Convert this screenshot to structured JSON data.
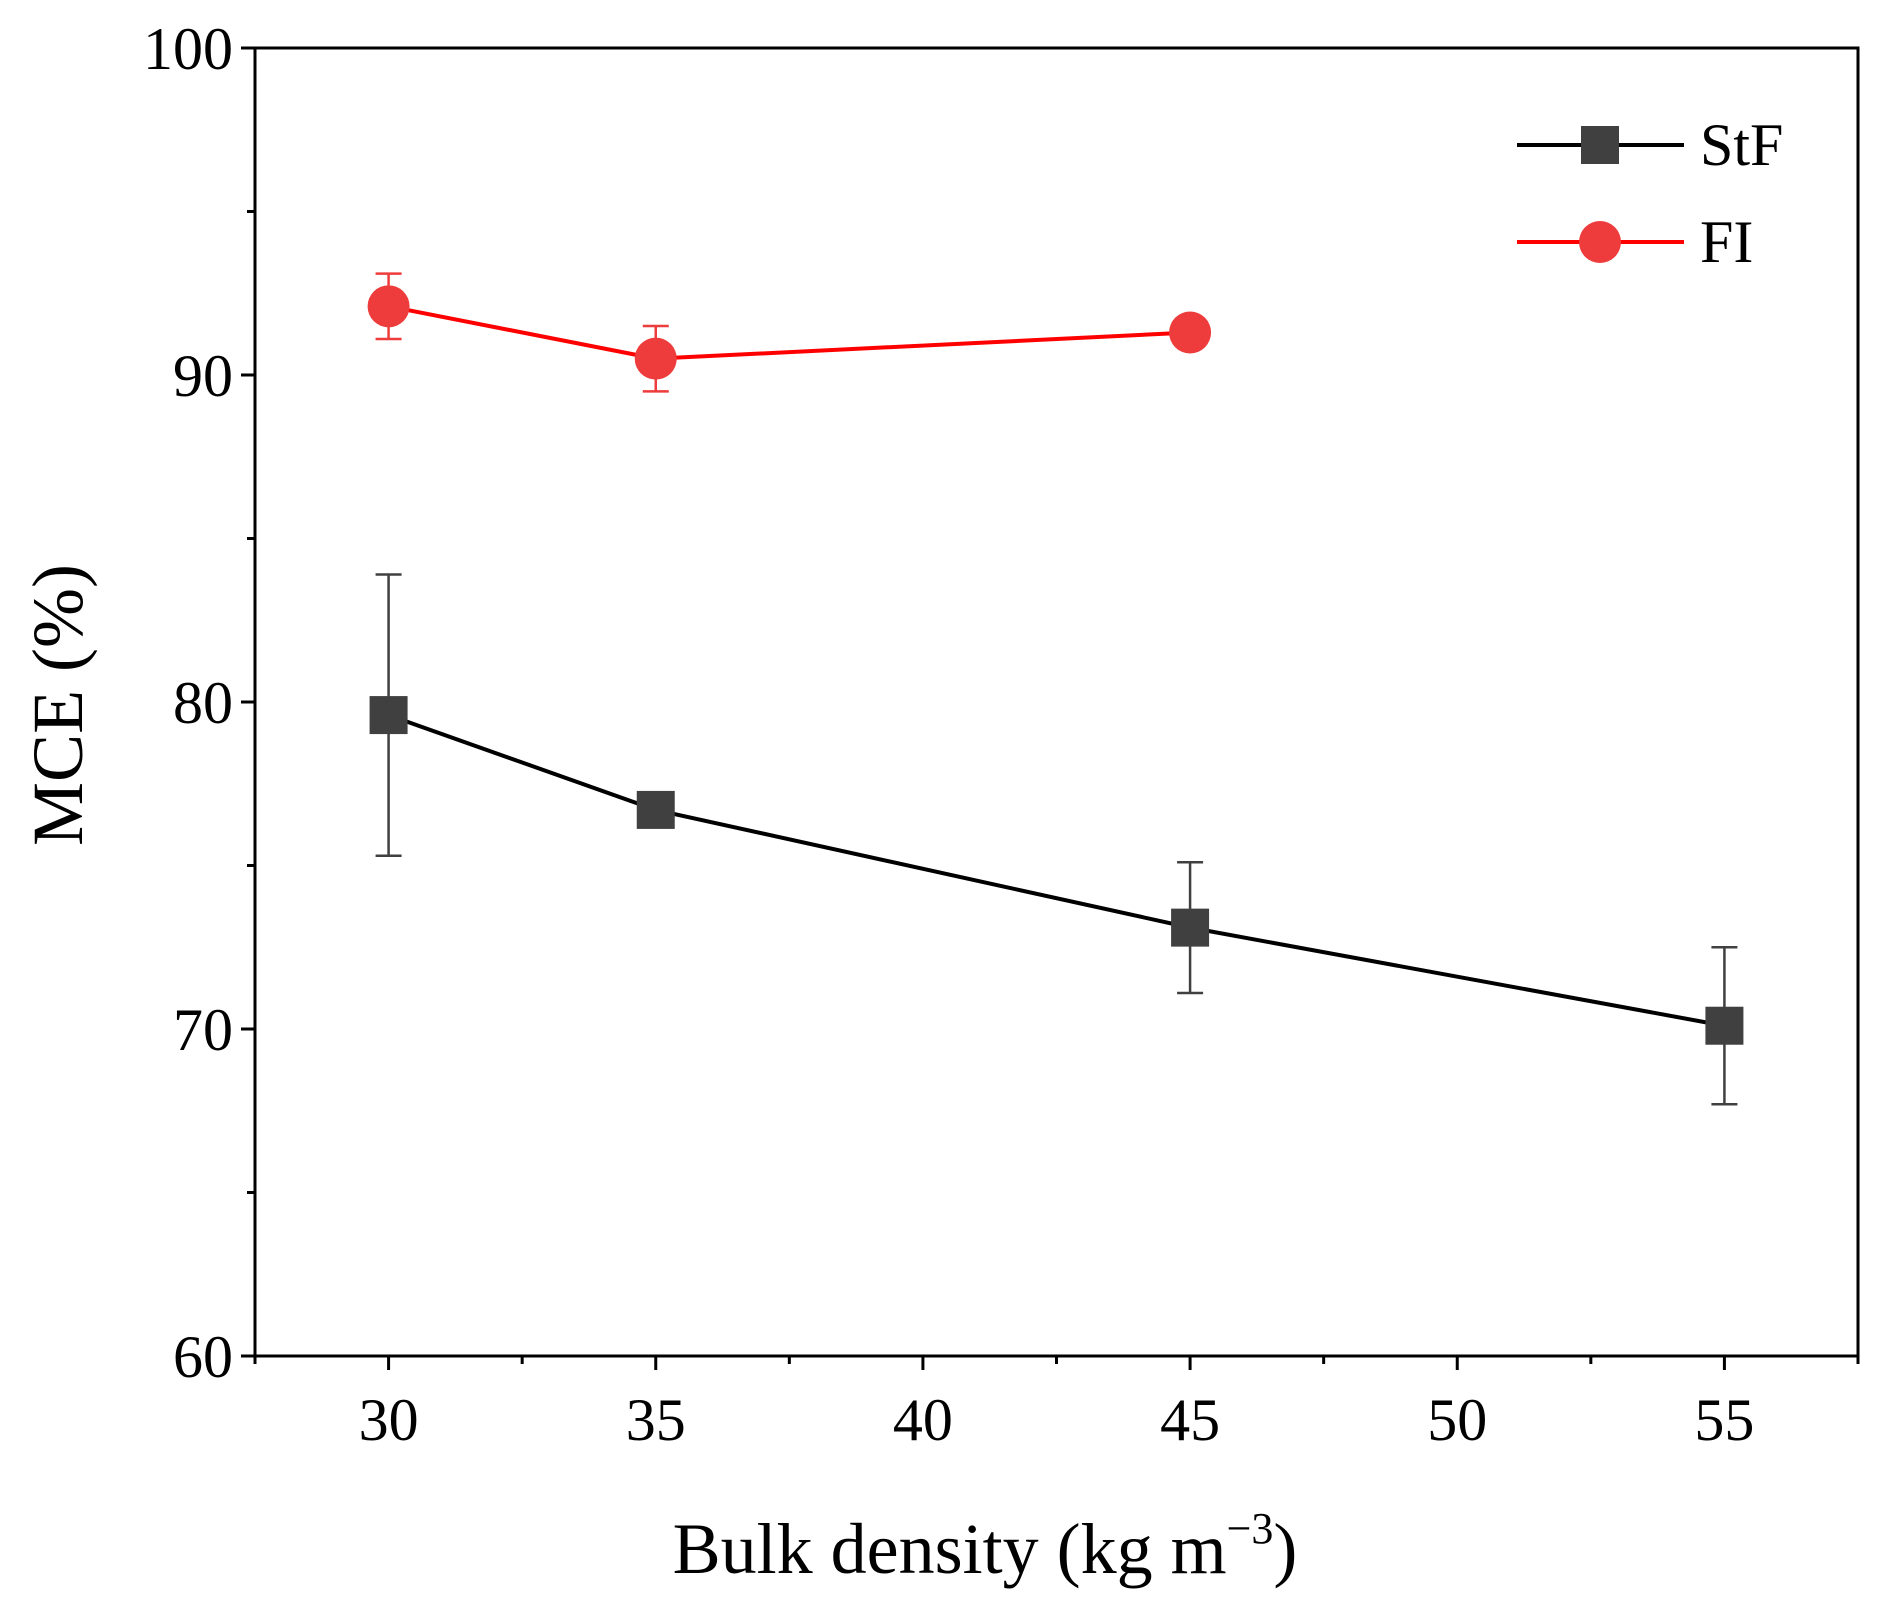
{
  "chart_data": {
    "type": "line",
    "title": "",
    "xlabel": "Bulk density (kg m",
    "xlabel_superscript": "−3",
    "xlabel_suffix": ")",
    "ylabel": "MCE (%)",
    "xlim": [
      27.5,
      57.5
    ],
    "ylim": [
      60,
      100
    ],
    "x_ticks": [
      30,
      35,
      40,
      45,
      50,
      55
    ],
    "x_tick_labels": [
      "30",
      "35",
      "40",
      "45",
      "50",
      "55"
    ],
    "y_ticks": [
      60,
      70,
      80,
      90,
      100
    ],
    "y_tick_labels": [
      "60",
      "70",
      "80",
      "90",
      "100"
    ],
    "grid": false,
    "legend_position": "top-right",
    "series": [
      {
        "name": "StF",
        "color": "#000000",
        "marker_color": "#404040",
        "marker": "square",
        "x": [
          30,
          35,
          45,
          55
        ],
        "values": [
          79.6,
          76.7,
          73.1,
          70.1
        ],
        "error": [
          4.3,
          0,
          2.0,
          2.4
        ]
      },
      {
        "name": "FI",
        "color": "#ff0000",
        "marker_color": "#ee3b3b",
        "marker": "circle",
        "x": [
          30,
          35,
          45
        ],
        "values": [
          92.1,
          90.5,
          91.3
        ],
        "error": [
          1.0,
          1.0,
          0
        ]
      }
    ]
  }
}
